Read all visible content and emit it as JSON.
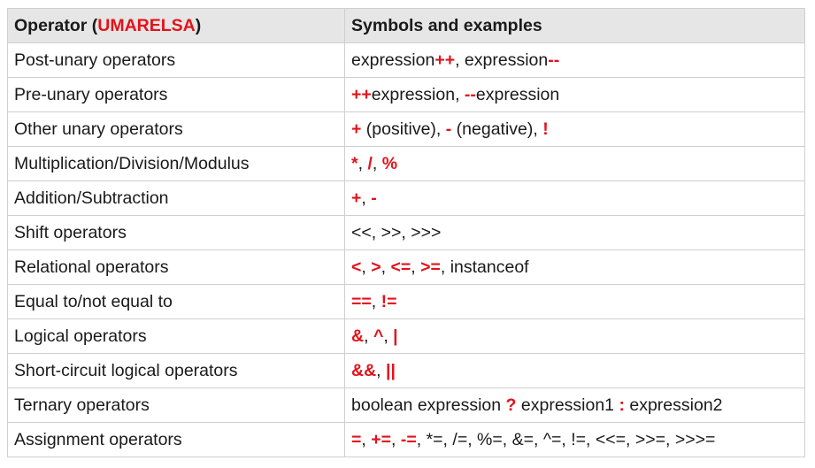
{
  "colors": {
    "accent": "#e3121b",
    "header_bg": "#e6e6e6",
    "border": "#cfcfcf",
    "text": "#1a1a1a"
  },
  "header": {
    "col1_prefix": "Operator (",
    "col1_acronym": "UMARELSA",
    "col1_suffix": ")",
    "col2": "Symbols and examples"
  },
  "rows": [
    {
      "operator": "Post-unary operators",
      "symbols": [
        {
          "t": "expression",
          "accent": false
        },
        {
          "t": "++",
          "accent": true
        },
        {
          "t": ", expression",
          "accent": false
        },
        {
          "t": "--",
          "accent": true
        }
      ]
    },
    {
      "operator": "Pre-unary operators",
      "symbols": [
        {
          "t": "++",
          "accent": true
        },
        {
          "t": "expression, ",
          "accent": false
        },
        {
          "t": "--",
          "accent": true
        },
        {
          "t": "expression",
          "accent": false
        }
      ]
    },
    {
      "operator": "Other unary operators",
      "symbols": [
        {
          "t": "+",
          "accent": true
        },
        {
          "t": " (positive), ",
          "accent": false
        },
        {
          "t": "-",
          "accent": true
        },
        {
          "t": " (negative), ",
          "accent": false
        },
        {
          "t": "!",
          "accent": true
        }
      ]
    },
    {
      "operator": "Multiplication/Division/Modulus",
      "symbols": [
        {
          "t": "*",
          "accent": true
        },
        {
          "t": ", ",
          "accent": false
        },
        {
          "t": "/",
          "accent": true
        },
        {
          "t": ", ",
          "accent": false
        },
        {
          "t": "%",
          "accent": true
        }
      ]
    },
    {
      "operator": "Addition/Subtraction",
      "symbols": [
        {
          "t": "+",
          "accent": true
        },
        {
          "t": ", ",
          "accent": false
        },
        {
          "t": "-",
          "accent": true
        }
      ]
    },
    {
      "operator": "Shift operators",
      "symbols": [
        {
          "t": "<<, >>, >>>",
          "accent": false
        }
      ]
    },
    {
      "operator": "Relational operators",
      "symbols": [
        {
          "t": "<",
          "accent": true
        },
        {
          "t": ", ",
          "accent": false
        },
        {
          "t": ">",
          "accent": true
        },
        {
          "t": ", ",
          "accent": false
        },
        {
          "t": "<=",
          "accent": true
        },
        {
          "t": ", ",
          "accent": false
        },
        {
          "t": ">=",
          "accent": true
        },
        {
          "t": ", instanceof",
          "accent": false
        }
      ]
    },
    {
      "operator": "Equal to/not equal to",
      "symbols": [
        {
          "t": "==",
          "accent": true
        },
        {
          "t": ", ",
          "accent": false
        },
        {
          "t": "!=",
          "accent": true
        }
      ]
    },
    {
      "operator": "Logical operators",
      "symbols": [
        {
          "t": "&",
          "accent": true
        },
        {
          "t": ", ",
          "accent": false
        },
        {
          "t": "^",
          "accent": true
        },
        {
          "t": ", ",
          "accent": false
        },
        {
          "t": "|",
          "accent": true
        }
      ]
    },
    {
      "operator": "Short-circuit logical operators",
      "symbols": [
        {
          "t": "&&",
          "accent": true
        },
        {
          "t": ", ",
          "accent": false
        },
        {
          "t": "||",
          "accent": true
        }
      ]
    },
    {
      "operator": "Ternary operators",
      "symbols": [
        {
          "t": "boolean expression ",
          "accent": false
        },
        {
          "t": "?",
          "accent": true
        },
        {
          "t": " expression1 ",
          "accent": false
        },
        {
          "t": ":",
          "accent": true
        },
        {
          "t": " expression2",
          "accent": false
        }
      ]
    },
    {
      "operator": "Assignment operators",
      "symbols": [
        {
          "t": "=",
          "accent": true
        },
        {
          "t": ", ",
          "accent": false
        },
        {
          "t": "+=",
          "accent": true
        },
        {
          "t": ", ",
          "accent": false
        },
        {
          "t": "-=",
          "accent": true
        },
        {
          "t": ", *=, /=, %=, &=, ^=, !=, <<=, >>=, >>>=",
          "accent": false
        }
      ]
    }
  ]
}
